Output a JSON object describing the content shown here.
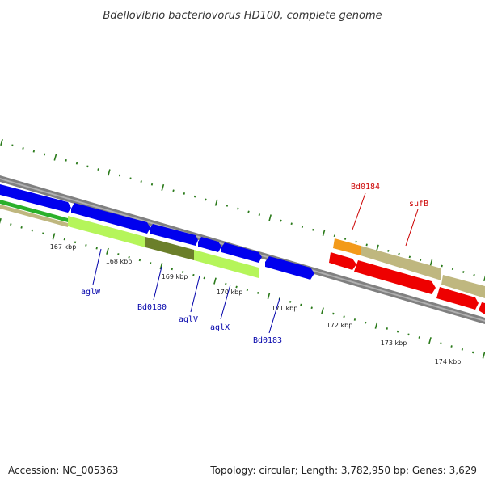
{
  "title": "Bdellovibrio bacteriovorus HD100, complete genome",
  "footer": {
    "accession": "Accession: NC_005363",
    "topology": "Topology: circular; Length: 3,782,950 bp; Genes: 3,629"
  },
  "kbp_labels": [
    "167 kbp",
    "168 kbp",
    "169 kbp",
    "170 kbp",
    "171 kbp",
    "172 kbp",
    "173 kbp",
    "174 kbp"
  ],
  "gene_labels": [
    {
      "name": "aglW",
      "color": "#0000aa"
    },
    {
      "name": "Bd0180",
      "color": "#0000aa"
    },
    {
      "name": "aglV",
      "color": "#0000aa"
    },
    {
      "name": "aglX",
      "color": "#0000aa"
    },
    {
      "name": "Bd0183",
      "color": "#0000aa"
    },
    {
      "name": "Bd0184",
      "color": "#cc0000"
    },
    {
      "name": "sufB",
      "color": "#cc0000"
    }
  ],
  "colors": {
    "backbone": "#808080",
    "tick": "#2a7a1a",
    "cds_forward": "#0000ee",
    "cds_reverse": "#ee0000",
    "gene_track_green": "#2ab02a",
    "gene_track_lime": "#b5f55a",
    "gene_track_olive": "#6b7f2a",
    "gene_track_orange": "#f39a1a",
    "gene_track_khaki": "#bfb77f"
  }
}
